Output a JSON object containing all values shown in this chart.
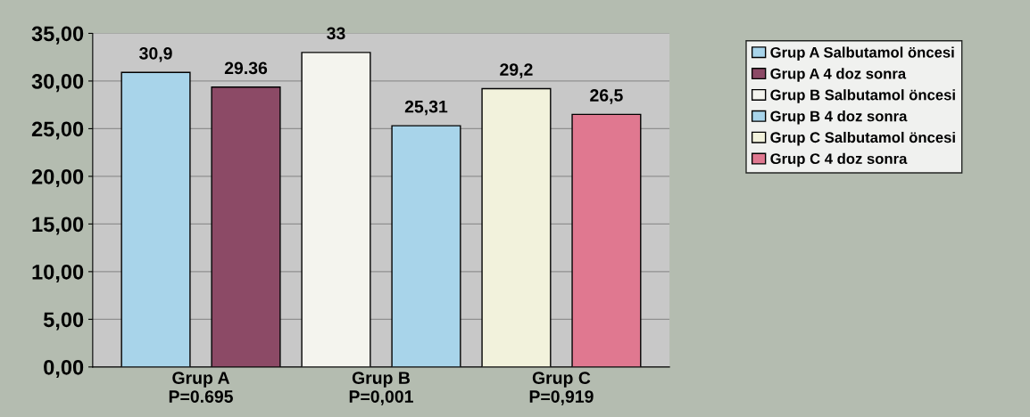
{
  "chart_data": {
    "type": "bar",
    "categories": [
      "Grup A\nP=0.695",
      "Grup B\nP=0,001",
      "Grup C\nP=0,919"
    ],
    "series": [
      {
        "name": "Grup A Salbutamol öncesi",
        "color": "#a8d4ea",
        "values": [
          30.9,
          null,
          null
        ],
        "value_labels": [
          "30,9",
          null,
          null
        ]
      },
      {
        "name": "Grup A 4 doz sonra",
        "color": "#8c4a66",
        "values": [
          29.36,
          null,
          null
        ],
        "value_labels": [
          "29.36",
          null,
          null
        ]
      },
      {
        "name": "Grup B Salbutamol öncesi",
        "color": "#f4f4ee",
        "values": [
          null,
          33,
          null
        ],
        "value_labels": [
          null,
          "33",
          null
        ]
      },
      {
        "name": "Grup B 4 doz sonra",
        "color": "#a8d4ea",
        "values": [
          null,
          25.31,
          null
        ],
        "value_labels": [
          null,
          "25,31",
          null
        ]
      },
      {
        "name": "Grup C Salbutamol öncesi",
        "color": "#f2f2dc",
        "values": [
          null,
          null,
          29.2
        ],
        "value_labels": [
          null,
          null,
          "29,2"
        ]
      },
      {
        "name": "Grup C 4 doz sonra",
        "color": "#e07890",
        "values": [
          null,
          null,
          26.5
        ],
        "value_labels": [
          null,
          null,
          "26,5"
        ]
      }
    ],
    "ylim": [
      0,
      35
    ],
    "yticks": [
      {
        "value": 0,
        "label": "0,00"
      },
      {
        "value": 5,
        "label": "5,00"
      },
      {
        "value": 10,
        "label": "10,00"
      },
      {
        "value": 15,
        "label": "15,00"
      },
      {
        "value": 20,
        "label": "20,00"
      },
      {
        "value": 25,
        "label": "25,00"
      },
      {
        "value": 30,
        "label": "30,00"
      },
      {
        "value": 35,
        "label": "35,00"
      }
    ],
    "grid": "y",
    "legend": "right"
  }
}
